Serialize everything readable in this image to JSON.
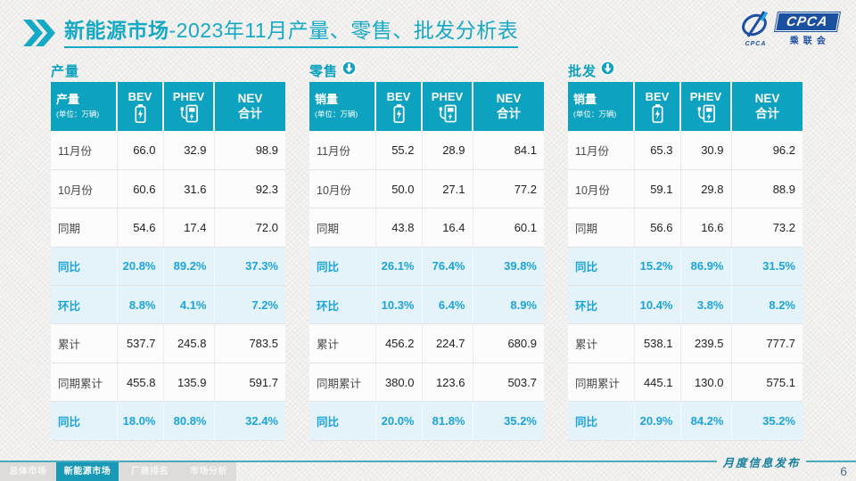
{
  "header": {
    "title_emphasis": "新能源市场",
    "title_rest": "-2023年11月产量、零售、批发分析表",
    "logo": {
      "acronym": "CPCA",
      "chinese": "乘联会",
      "small_text": "CPCA"
    }
  },
  "watermark": "CPCA 乘联会",
  "tables": [
    {
      "section_title": "产量",
      "arrow": false,
      "header": {
        "label": "产量",
        "unit": "(单位：万辆)",
        "col_bev": "BEV",
        "col_phev": "PHEV",
        "col_total_line1": "NEV",
        "col_total_line2": "合计"
      },
      "rows": [
        {
          "label": "11月份",
          "bev": "66.0",
          "phev": "32.9",
          "nev": "98.9",
          "highlight": false
        },
        {
          "label": "10月份",
          "bev": "60.6",
          "phev": "31.6",
          "nev": "92.3",
          "highlight": false
        },
        {
          "label": "同期",
          "bev": "54.6",
          "phev": "17.4",
          "nev": "72.0",
          "highlight": false
        },
        {
          "label": "同比",
          "bev": "20.8%",
          "phev": "89.2%",
          "nev": "37.3%",
          "highlight": true
        },
        {
          "label": "环比",
          "bev": "8.8%",
          "phev": "4.1%",
          "nev": "7.2%",
          "highlight": true
        },
        {
          "label": "累计",
          "bev": "537.7",
          "phev": "245.8",
          "nev": "783.5",
          "highlight": false
        },
        {
          "label": "同期累计",
          "bev": "455.8",
          "phev": "135.9",
          "nev": "591.7",
          "highlight": false
        },
        {
          "label": "同比",
          "bev": "18.0%",
          "phev": "80.8%",
          "nev": "32.4%",
          "highlight": true
        }
      ]
    },
    {
      "section_title": "零售",
      "arrow": true,
      "header": {
        "label": "销量",
        "unit": "(单位：万辆)",
        "col_bev": "BEV",
        "col_phev": "PHEV",
        "col_total_line1": "NEV",
        "col_total_line2": "合计"
      },
      "rows": [
        {
          "label": "11月份",
          "bev": "55.2",
          "phev": "28.9",
          "nev": "84.1",
          "highlight": false
        },
        {
          "label": "10月份",
          "bev": "50.0",
          "phev": "27.1",
          "nev": "77.2",
          "highlight": false
        },
        {
          "label": "同期",
          "bev": "43.8",
          "phev": "16.4",
          "nev": "60.1",
          "highlight": false
        },
        {
          "label": "同比",
          "bev": "26.1%",
          "phev": "76.4%",
          "nev": "39.8%",
          "highlight": true
        },
        {
          "label": "环比",
          "bev": "10.3%",
          "phev": "6.4%",
          "nev": "8.9%",
          "highlight": true
        },
        {
          "label": "累计",
          "bev": "456.2",
          "phev": "224.7",
          "nev": "680.9",
          "highlight": false
        },
        {
          "label": "同期累计",
          "bev": "380.0",
          "phev": "123.6",
          "nev": "503.7",
          "highlight": false
        },
        {
          "label": "同比",
          "bev": "20.0%",
          "phev": "81.8%",
          "nev": "35.2%",
          "highlight": true
        }
      ]
    },
    {
      "section_title": "批发",
      "arrow": true,
      "header": {
        "label": "销量",
        "unit": "(单位：万辆)",
        "col_bev": "BEV",
        "col_phev": "PHEV",
        "col_total_line1": "NEV",
        "col_total_line2": "合计"
      },
      "rows": [
        {
          "label": "11月份",
          "bev": "65.3",
          "phev": "30.9",
          "nev": "96.2",
          "highlight": false
        },
        {
          "label": "10月份",
          "bev": "59.1",
          "phev": "29.8",
          "nev": "88.9",
          "highlight": false
        },
        {
          "label": "同期",
          "bev": "56.6",
          "phev": "16.6",
          "nev": "73.2",
          "highlight": false
        },
        {
          "label": "同比",
          "bev": "15.2%",
          "phev": "86.9%",
          "nev": "31.5%",
          "highlight": true
        },
        {
          "label": "环比",
          "bev": "10.4%",
          "phev": "3.8%",
          "nev": "8.2%",
          "highlight": true
        },
        {
          "label": "累计",
          "bev": "538.1",
          "phev": "239.5",
          "nev": "777.7",
          "highlight": false
        },
        {
          "label": "同期累计",
          "bev": "445.1",
          "phev": "130.0",
          "nev": "575.1",
          "highlight": false
        },
        {
          "label": "同比",
          "bev": "20.9%",
          "phev": "84.2%",
          "nev": "35.2%",
          "highlight": true
        }
      ]
    }
  ],
  "footer": {
    "caption": "月度信息发布",
    "page_number": "6",
    "tabs": [
      {
        "label": "总体市场",
        "active": false
      },
      {
        "label": "新能源市场",
        "active": true
      },
      {
        "label": "厂商排名",
        "active": false
      },
      {
        "label": "市场分析",
        "active": false
      }
    ]
  },
  "colors": {
    "accent_teal": "#0da2bf",
    "title_teal": "#16a9c6",
    "highlight_blue": "#1ba4dc",
    "highlight_bg": "#e4f2fa",
    "logo_blue": "#1b4fa0",
    "footer_line": "#4aa9bd"
  }
}
